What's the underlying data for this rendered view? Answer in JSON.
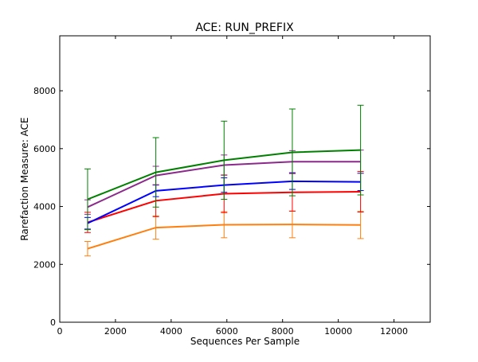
{
  "chart_data": {
    "type": "line",
    "title": "ACE: RUN_PREFIX",
    "xlabel": "Sequences Per Sample",
    "ylabel": "Rarefaction Measure: ACE",
    "xlim": [
      0,
      13300
    ],
    "ylim": [
      0,
      9900
    ],
    "x_ticks": [
      0,
      2000,
      4000,
      6000,
      8000,
      10000,
      12000
    ],
    "y_ticks": [
      0,
      2000,
      4000,
      6000,
      8000
    ],
    "grid": false,
    "legend": "none",
    "x": [
      1000,
      3450,
      5900,
      8350,
      10800
    ],
    "series": [
      {
        "color": "#008000",
        "values": [
          4250,
          5180,
          5600,
          5870,
          5950
        ],
        "err": [
          1050,
          1200,
          1350,
          1500,
          1550
        ]
      },
      {
        "color": "#8B2A8B",
        "values": [
          3980,
          5070,
          5430,
          5550,
          5550
        ],
        "err": [
          250,
          320,
          350,
          380,
          400
        ]
      },
      {
        "color": "#0000FF",
        "values": [
          3420,
          4540,
          4740,
          4870,
          4850
        ],
        "err": [
          200,
          200,
          250,
          280,
          300
        ]
      },
      {
        "color": "#FF0000",
        "values": [
          3450,
          4200,
          4440,
          4490,
          4510
        ],
        "err": [
          350,
          550,
          650,
          650,
          700
        ]
      },
      {
        "color": "#FF7F0E",
        "values": [
          2540,
          3270,
          3370,
          3380,
          3360
        ],
        "err": [
          250,
          400,
          450,
          460,
          470
        ]
      }
    ]
  }
}
